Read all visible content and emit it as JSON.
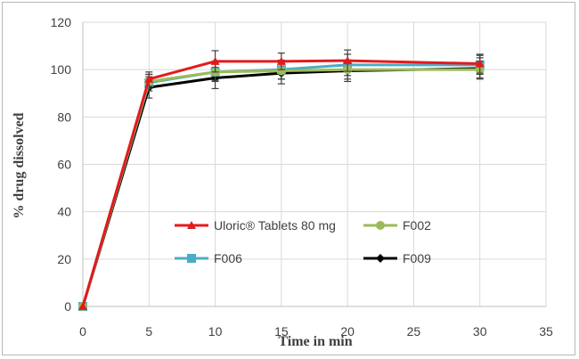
{
  "chart_data": {
    "type": "line",
    "xlabel": "Time in min",
    "ylabel": "% drug dissolved",
    "xlim": [
      0,
      35
    ],
    "ylim": [
      0,
      120
    ],
    "xticks": [
      0,
      5,
      10,
      15,
      20,
      25,
      30,
      35
    ],
    "yticks": [
      0,
      20,
      40,
      60,
      80,
      100,
      120
    ],
    "grid": "horizontal and vertical",
    "legend_placement": "inside lower-center",
    "series": [
      {
        "name": "Uloric® Tablets 80 mg",
        "color": "#e31a1c",
        "marker": "triangle",
        "x": [
          0,
          5,
          10,
          15,
          20,
          30
        ],
        "y": [
          0,
          96,
          103.5,
          103.5,
          103.8,
          102.5
        ],
        "error": [
          0,
          3,
          4.5,
          3.5,
          4.5,
          4
        ]
      },
      {
        "name": "F002",
        "color": "#9bbb59",
        "marker": "circle",
        "x": [
          0,
          5,
          10,
          15,
          20,
          30
        ],
        "y": [
          0,
          95,
          99,
          99.5,
          100,
          100
        ],
        "error": [
          0,
          3,
          3.5,
          3.5,
          4,
          3.5
        ]
      },
      {
        "name": "F006",
        "color": "#4bacc6",
        "marker": "square",
        "x": [
          0,
          5,
          10,
          15,
          20,
          30
        ],
        "y": [
          0,
          94.5,
          99,
          100,
          102,
          102
        ],
        "error": [
          0,
          3.5,
          4,
          4,
          4.5,
          4
        ]
      },
      {
        "name": "F009",
        "color": "#000000",
        "marker": "diamond",
        "x": [
          0,
          5,
          10,
          15,
          20,
          30
        ],
        "y": [
          0,
          92.5,
          96.5,
          98.5,
          99.5,
          100.5
        ],
        "error": [
          0,
          4.5,
          4.5,
          4.5,
          4.5,
          4.5
        ]
      }
    ]
  }
}
